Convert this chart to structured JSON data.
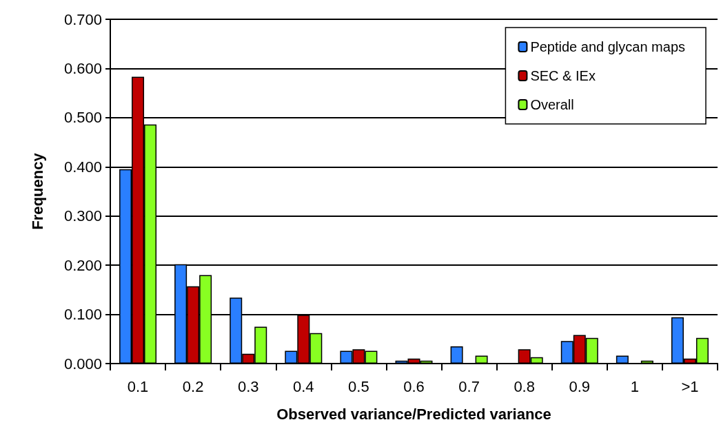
{
  "chart_data": {
    "type": "bar",
    "xlabel": "Observed variance/Predicted variance",
    "ylabel": "Frequency",
    "categories": [
      "0.1",
      "0.2",
      "0.3",
      "0.4",
      "0.5",
      "0.6",
      "0.7",
      "0.8",
      "0.9",
      "1",
      ">1"
    ],
    "series": [
      {
        "name": "Peptide and glycan maps",
        "color": "#2a7fff",
        "values": [
          0.395,
          0.202,
          0.134,
          0.026,
          0.026,
          0.006,
          0.035,
          0,
          0.046,
          0.016,
          0.094
        ]
      },
      {
        "name": "SEC & IEx",
        "color": "#c00000",
        "values": [
          0.583,
          0.157,
          0.02,
          0.099,
          0.029,
          0.01,
          0,
          0.029,
          0.058,
          0,
          0.01
        ]
      },
      {
        "name": "Overall",
        "color": "#88ff22",
        "values": [
          0.486,
          0.18,
          0.075,
          0.062,
          0.026,
          0.006,
          0.016,
          0.013,
          0.052,
          0.006,
          0.052
        ]
      }
    ],
    "ylim": [
      0,
      0.7
    ],
    "yticks": [
      {
        "value": 0,
        "label": "0.000"
      },
      {
        "value": 0.1,
        "label": "0.100"
      },
      {
        "value": 0.2,
        "label": "0.200"
      },
      {
        "value": 0.3,
        "label": "0.300"
      },
      {
        "value": 0.4,
        "label": "0.400"
      },
      {
        "value": 0.5,
        "label": "0.500"
      },
      {
        "value": 0.6,
        "label": "0.600"
      },
      {
        "value": 0.7,
        "label": "0.700"
      }
    ],
    "grid": "y",
    "legend": "top right"
  }
}
